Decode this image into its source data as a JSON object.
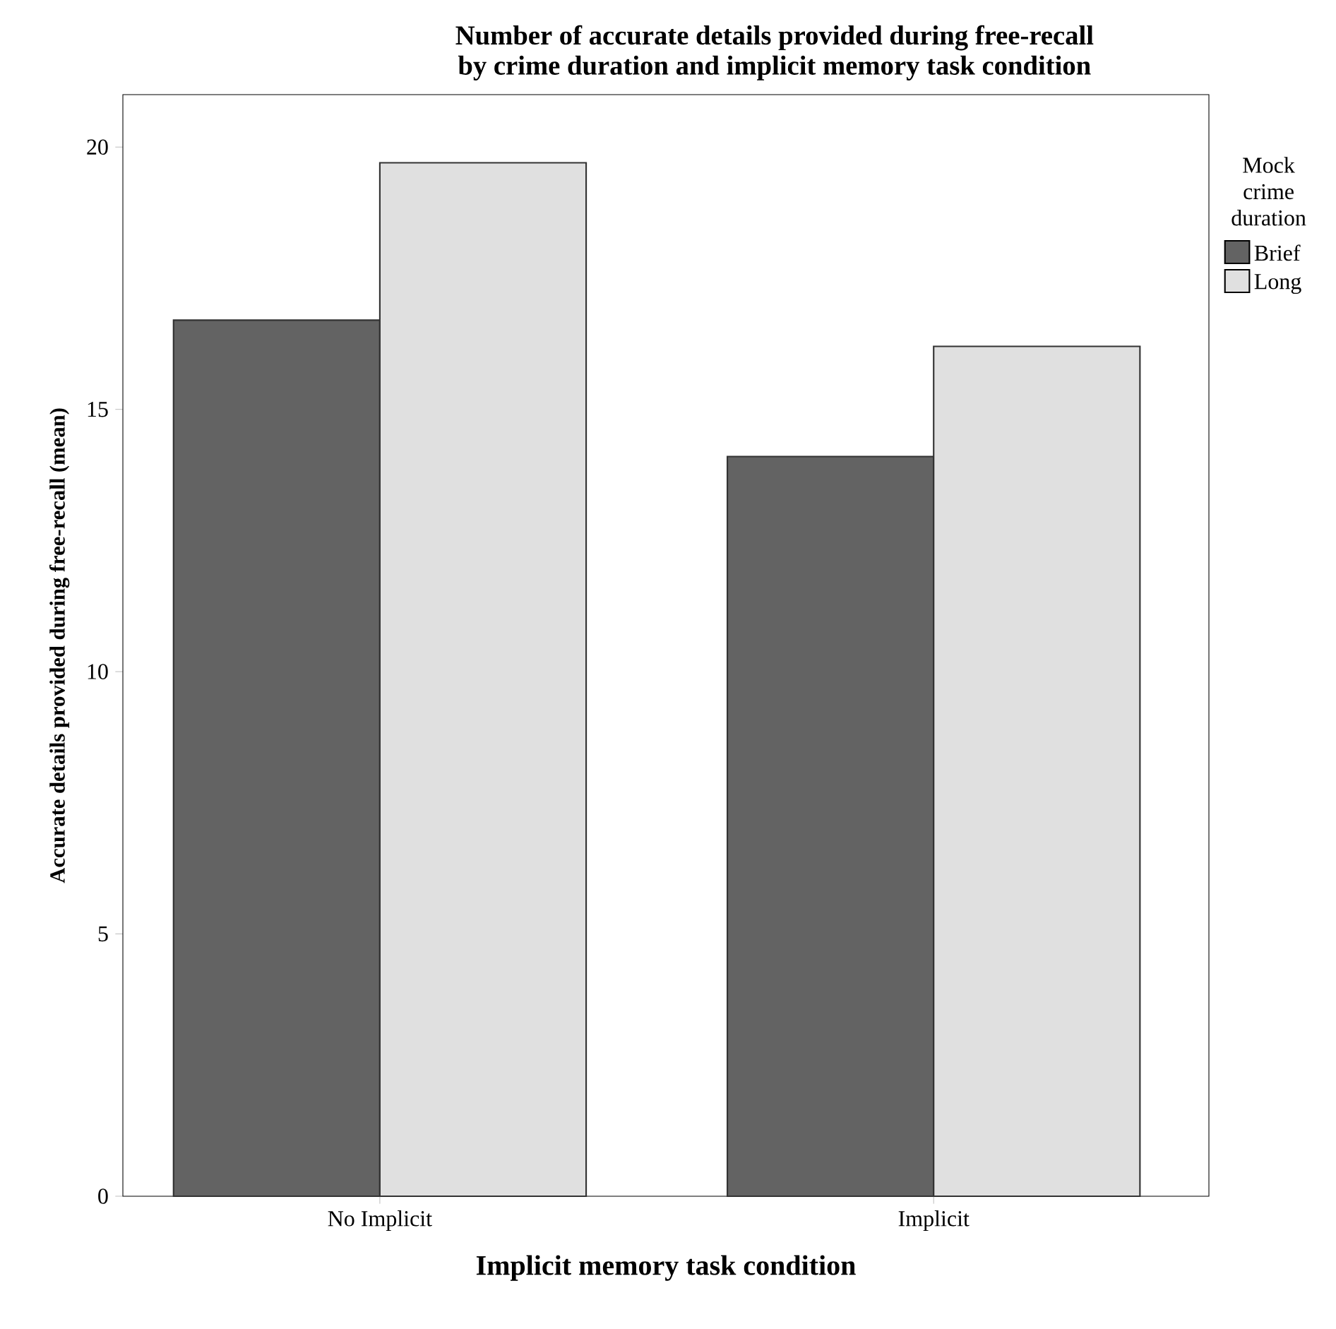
{
  "chart_data": {
    "type": "bar",
    "title": "Number of accurate details provided during free-recall\nby crime duration and implicit memory task condition",
    "xlabel": "Implicit memory task condition",
    "ylabel": "Accurate details provided during free-recall (mean)",
    "legend_title": "Mock crime duration",
    "legend": "right",
    "categories": [
      "No Implicit",
      "Implicit"
    ],
    "series": [
      {
        "name": "Brief",
        "color": "#636363",
        "values": [
          16.7,
          14.1
        ]
      },
      {
        "name": "Long",
        "color": "#e0e0e0",
        "values": [
          19.7,
          16.2
        ]
      }
    ],
    "ylim": [
      0,
      21
    ],
    "yticks": [
      0,
      5,
      10,
      15,
      20
    ]
  }
}
